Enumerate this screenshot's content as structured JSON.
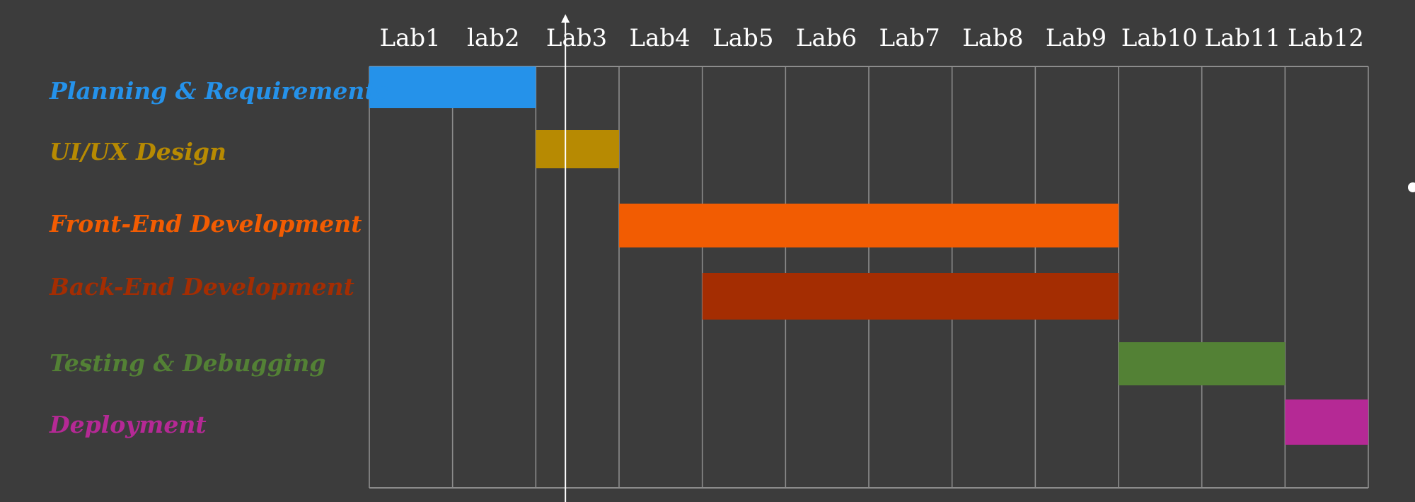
{
  "chart_data": {
    "type": "gantt",
    "title": "",
    "xlabel": "",
    "ylabel": "",
    "x_ticks": [
      "Lab1",
      "lab2",
      "Lab3",
      "Lab4",
      "Lab5",
      "Lab6",
      "Lab7",
      "Lab8",
      "Lab9",
      "Lab10",
      "Lab11",
      "Lab12"
    ],
    "x_range": [
      0,
      12
    ],
    "grid": true,
    "current_marker": 2.5,
    "tasks": [
      {
        "name": "Planning & Requirements",
        "start": 0,
        "end": 2,
        "color": "#2592ea"
      },
      {
        "name": "UI/UX Design",
        "start": 2,
        "end": 3,
        "color": "#b78a02"
      },
      {
        "name": "Front-End Development",
        "start": 3,
        "end": 9,
        "color": "#f25c02"
      },
      {
        "name": "Back-End Development",
        "start": 4,
        "end": 9,
        "color": "#a42d02"
      },
      {
        "name": "Testing & Debugging",
        "start": 9,
        "end": 11,
        "color": "#538135"
      },
      {
        "name": "Deployment",
        "start": 11,
        "end": 12,
        "color": "#b52995"
      }
    ]
  }
}
